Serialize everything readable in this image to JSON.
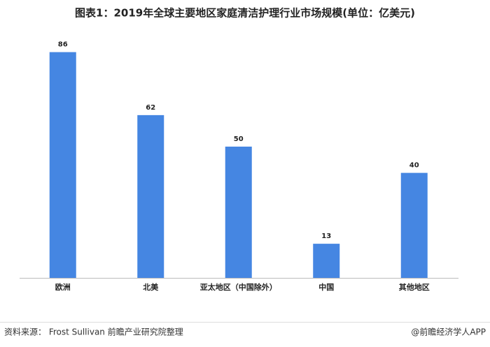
{
  "chart_data": {
    "type": "bar",
    "title": "图表1：2019年全球主要地区家庭清洁护理行业市场规模(单位：亿美元)",
    "categories": [
      "欧洲",
      "北美",
      "亚太地区（中国除外）",
      "中国",
      "其他地区"
    ],
    "values": [
      86,
      62,
      50,
      13,
      40
    ],
    "color": "#4586e2",
    "source": "资料来源： Frost Sullivan 前瞻产业研究院整理",
    "credit": "@前瞻经济学人APP"
  }
}
